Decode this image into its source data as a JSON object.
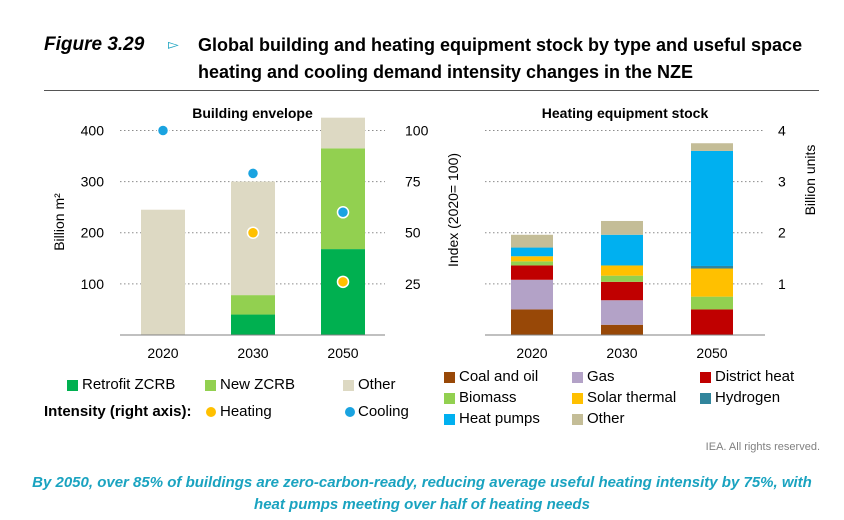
{
  "figure": {
    "label": "Figure 3.29",
    "title": "Global building and heating equipment stock by type and useful space heating and cooling demand intensity changes in the NZE"
  },
  "chart_data": [
    {
      "type": "bar",
      "subtitle": "Building envelope",
      "stacked": true,
      "categories": [
        "2020",
        "2030",
        "2050"
      ],
      "ylabel": "Billion m²",
      "ylim": [
        0,
        440
      ],
      "yticks": [
        100,
        200,
        300,
        400
      ],
      "y2label": "Index (2020= 100)",
      "y2lim": [
        0,
        110
      ],
      "y2ticks": [
        25,
        50,
        75,
        100
      ],
      "series": [
        {
          "name": "Retrofit ZCRB",
          "color": "#00b050",
          "values": [
            0,
            40,
            168
          ]
        },
        {
          "name": "New ZCRB",
          "color": "#92d050",
          "values": [
            0,
            38,
            197
          ]
        },
        {
          "name": "Other",
          "color": "#ddd9c3",
          "values": [
            245,
            222,
            60
          ]
        }
      ],
      "intensity": [
        {
          "name": "Heating",
          "color": "#ffc000",
          "axis": "right",
          "values": [
            null,
            50,
            26
          ]
        },
        {
          "name": "Cooling",
          "color": "#1aa3e0",
          "axis": "right",
          "values": [
            100,
            79,
            60
          ]
        }
      ]
    },
    {
      "type": "bar",
      "subtitle": "Heating equipment stock",
      "stacked": true,
      "categories": [
        "2020",
        "2030",
        "2050"
      ],
      "ylabel": "Billion units",
      "ylim": [
        0,
        4.4
      ],
      "yticks": [
        1,
        2,
        3,
        4
      ],
      "series": [
        {
          "name": "Coal and oil",
          "color": "#984807",
          "values": [
            0.5,
            0.2,
            0
          ]
        },
        {
          "name": "Gas",
          "color": "#b3a2c7",
          "values": [
            0.58,
            0.48,
            0
          ]
        },
        {
          "name": "District heat",
          "color": "#c00000",
          "values": [
            0.28,
            0.36,
            0.5
          ]
        },
        {
          "name": "Biomass",
          "color": "#92d050",
          "values": [
            0.08,
            0.12,
            0.25
          ]
        },
        {
          "name": "Solar thermal",
          "color": "#ffc000",
          "values": [
            0.1,
            0.2,
            0.55
          ]
        },
        {
          "name": "Hydrogen",
          "color": "#31859c",
          "values": [
            0,
            0,
            0.05
          ]
        },
        {
          "name": "Heat pumps",
          "color": "#00b0f0",
          "values": [
            0.17,
            0.6,
            2.25
          ]
        },
        {
          "name": "Other",
          "color": "#c4bd97",
          "values": [
            0.25,
            0.27,
            0.15
          ]
        }
      ]
    }
  ],
  "legend_left": {
    "row1": [
      "Retrofit ZCRB",
      "New ZCRB",
      "Other"
    ],
    "intensity_label": "Intensity  (right axis):",
    "row2": [
      "Heating",
      "Cooling"
    ]
  },
  "legend_right": [
    "Coal and oil",
    "Gas",
    "District heat",
    "Biomass",
    "Solar thermal",
    "Hydrogen",
    "Heat pumps",
    "Other"
  ],
  "rights": "IEA. All rights reserved.",
  "caption": "By 2050, over 85% of buildings are zero-carbon-ready, reducing average useful heating intensity by 75%, with heat pumps meeting over half of heating needs"
}
